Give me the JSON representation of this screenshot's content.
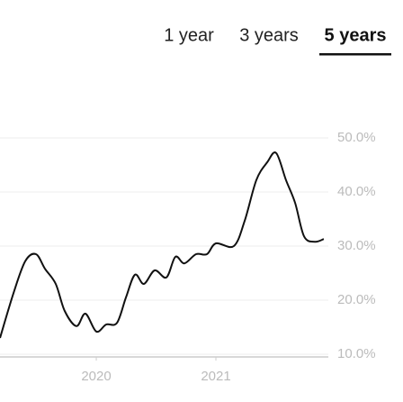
{
  "tabs": [
    "1 year",
    "3 years",
    "5 years"
  ],
  "selected_tab": 2,
  "chart_data": {
    "type": "line",
    "x": [
      2019.195,
      2019.308,
      2019.406,
      2019.496,
      2019.571,
      2019.661,
      2019.736,
      2019.834,
      2019.909,
      2020.0,
      2020.083,
      2020.173,
      2020.248,
      2020.323,
      2020.398,
      2020.488,
      2020.586,
      2020.661,
      2020.736,
      2020.834,
      2020.925,
      2021.0,
      2021.15,
      2021.241,
      2021.338,
      2021.429,
      2021.504,
      2021.586,
      2021.662,
      2021.737,
      2021.827,
      2021.902
    ],
    "values": [
      13.0,
      21.3,
      27.2,
      28.5,
      25.8,
      23.0,
      18.0,
      15.2,
      17.5,
      14.2,
      15.5,
      15.8,
      20.5,
      24.7,
      23.0,
      25.5,
      24.2,
      28.0,
      26.8,
      28.5,
      28.5,
      30.5,
      30.0,
      34.7,
      42.2,
      45.5,
      47.2,
      42.2,
      38.0,
      31.8,
      30.8,
      31.3
    ],
    "color": "#111111",
    "xlim": [
      2019.195,
      2021.94
    ],
    "xticks": [
      2020,
      2021
    ],
    "ylim": [
      9.5,
      52
    ],
    "yticks": [
      {
        "value": 10,
        "label": "10.0%"
      },
      {
        "value": 20,
        "label": "20.0%"
      },
      {
        "value": 30,
        "label": "30.0%"
      },
      {
        "value": 40,
        "label": "40.0%"
      },
      {
        "value": 50,
        "label": "50.0%"
      }
    ],
    "grid": true
  }
}
